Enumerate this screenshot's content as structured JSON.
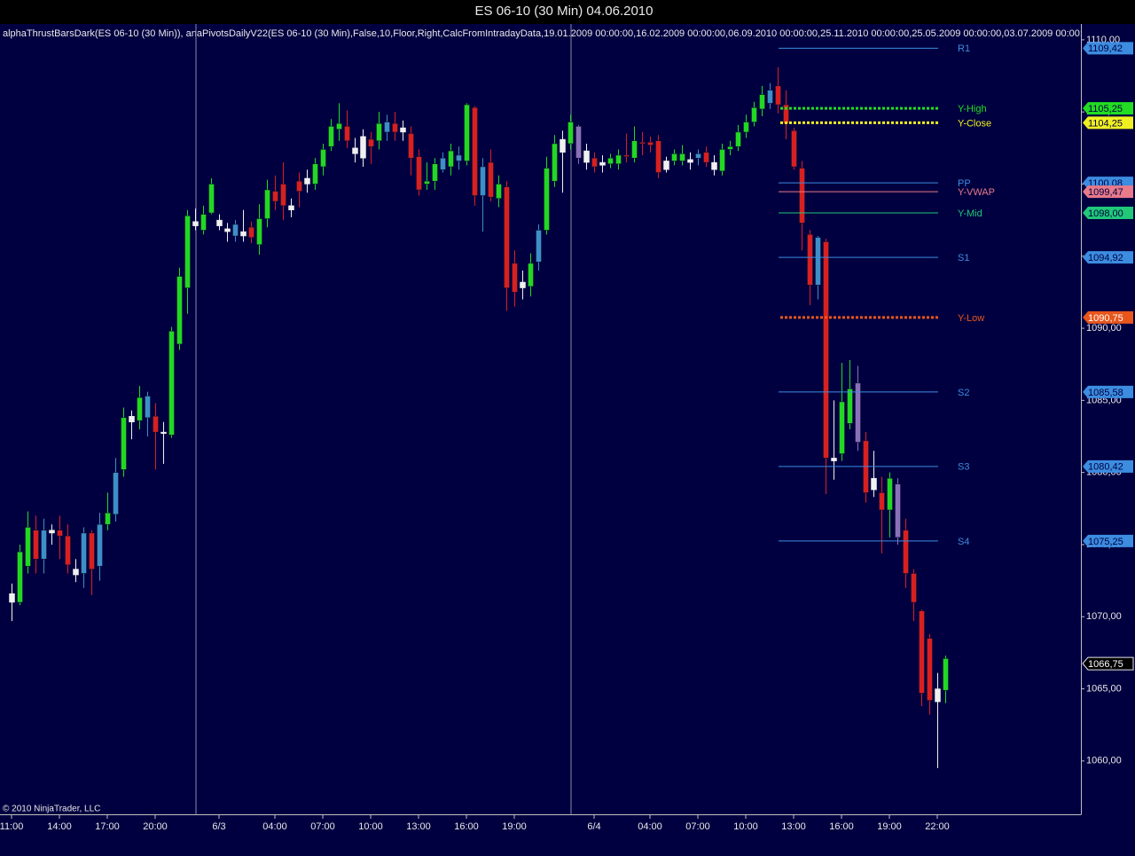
{
  "chart_data": {
    "type": "candlestick",
    "title": "ES 06-10 (30 Min)  04.06.2010",
    "indicator_text": "alphaThrustBarsDark(ES 06-10 (30 Min)), anaPivotsDailyV22(ES 06-10 (30 Min),False,10,Floor,Right,CalcFromIntradayData,19.01.2009 00:00:00,16.02.2009 00:00:00,06.09.2010 00:00:00,25.11.2010 00:00:00,25.05.2009 00:00:00,03.07.2009 00:00:0",
    "copyright": "© 2010 NinjaTrader, LLC",
    "categories": [
      "11:00",
      null,
      null,
      null,
      null,
      null,
      "14:00",
      null,
      null,
      null,
      null,
      null,
      "17:00",
      null,
      null,
      null,
      null,
      null,
      "20:00",
      null,
      null,
      null,
      null,
      null,
      null,
      null,
      "6/3",
      null,
      null,
      null,
      null,
      null,
      null,
      "04:00",
      null,
      null,
      null,
      null,
      null,
      "07:00",
      null,
      null,
      null,
      null,
      null,
      "10:00",
      null,
      null,
      null,
      null,
      null,
      "13:00",
      null,
      null,
      null,
      null,
      null,
      "16:00",
      null,
      null,
      null,
      null,
      null,
      "19:00",
      null,
      null,
      null,
      null,
      null,
      null,
      null,
      null,
      null,
      "6/4",
      null,
      null,
      null,
      null,
      null,
      null,
      "04:00",
      null,
      null,
      null,
      null,
      null,
      "07:00",
      null,
      null,
      null,
      null,
      null,
      "10:00",
      null,
      null,
      null,
      null,
      null,
      "13:00",
      null,
      null,
      null,
      null,
      null,
      "16:00",
      null,
      null,
      null,
      null,
      null,
      "19:00",
      null,
      null,
      null,
      null,
      null,
      "22:00",
      null
    ],
    "open": [
      1071,
      1071,
      1073.5,
      1076,
      1074,
      1076,
      1076,
      1075.6,
      1072.9,
      1073,
      1075.8,
      1073.5,
      1076.4,
      1077.1,
      1080.2,
      1083.9,
      1083.6,
      1083.8,
      1083.9,
      1082.7,
      1082.6,
      1088.9,
      1092.8,
      1097.1,
      1096.8,
      1098,
      1097.1,
      1096.7,
      1096.4,
      1096.7,
      1097,
      1095.8,
      1097.6,
      1099.5,
      1100,
      1098.2,
      1100.2,
      1100,
      1100,
      1101.2,
      1102.6,
      1103.8,
      1104,
      1102.5,
      1101.8,
      1103.1,
      1103,
      1103.6,
      1104.2,
      1103.6,
      1103.5,
      1101.9,
      1100,
      1100.2,
      1101,
      1101.2,
      1101.6,
      1101.6,
      1105.3,
      1099.2,
      1101.5,
      1099,
      1099.8,
      1094.5,
      1093.2,
      1092.9,
      1094.6,
      1096.8,
      1100.2,
      1102.2,
      1102.8,
      1104,
      1102.3,
      1101.8,
      1101.3,
      1101.4,
      1101.4,
      1102,
      1101.8,
      1102.9,
      1102.9,
      1103,
      1101,
      1101.6,
      1101.6,
      1101.7,
      1101.8,
      1102.2,
      1101.5,
      1100.9,
      1102.4,
      1102.6,
      1103.6,
      1104.3,
      1105.2,
      1105.6,
      1106.8,
      1105.5,
      1103.7,
      1101.1,
      1096.5,
      1096.3,
      1096,
      1081,
      1081.3,
      1083.4,
      1086.2,
      1082.2,
      1078.8,
      1078.6,
      1077.4,
      1079.2,
      1076,
      1073,
      1070.4,
      1068.5,
      1064.1,
      1064.9
    ],
    "high": [
      1072.3,
      1075,
      1077.3,
      1077,
      1076.8,
      1076.4,
      1077,
      1076.4,
      1074,
      1076.2,
      1076,
      1077.2,
      1078.6,
      1081,
      1084.5,
      1084.3,
      1086,
      1085.6,
      1084.8,
      1083.5,
      1090.1,
      1094.2,
      1098.2,
      1098.3,
      1098.5,
      1100.4,
      1097.9,
      1097.3,
      1097.5,
      1098.2,
      1097.4,
      1098.6,
      1100.3,
      1100.6,
      1101.5,
      1099,
      1100.8,
      1101,
      1101.8,
      1102.8,
      1104.5,
      1105.6,
      1105.1,
      1103.2,
      1103.8,
      1103.6,
      1105,
      1104.8,
      1105,
      1104.4,
      1104,
      1102.4,
      1101.5,
      1101.8,
      1102.2,
      1102.8,
      1102.6,
      1105.6,
      1105.4,
      1101.8,
      1102.4,
      1100.6,
      1100.2,
      1095.4,
      1094,
      1095.2,
      1097.2,
      1101.9,
      1103.4,
      1103.7,
      1104.8,
      1104.1,
      1102.8,
      1102.2,
      1102,
      1102.1,
      1102.4,
      1103.5,
      1104,
      1103.6,
      1103.3,
      1103.4,
      1101.9,
      1102.4,
      1102.7,
      1102.2,
      1102.4,
      1102.6,
      1102,
      1102.8,
      1103,
      1104.1,
      1104.8,
      1105.7,
      1106.8,
      1107,
      1108.1,
      1106.5,
      1103.9,
      1101.6,
      1096.8,
      1096.4,
      1096.2,
      1085,
      1087.6,
      1087.8,
      1087.4,
      1082.8,
      1081.5,
      1079.7,
      1080,
      1079.6,
      1076.8,
      1073.3,
      1070.5,
      1068.8,
      1066.1,
      1067.3
    ],
    "low": [
      1069.7,
      1070.8,
      1073,
      1073,
      1073,
      1075,
      1074,
      1073,
      1072.4,
      1072,
      1071.5,
      1072.5,
      1076,
      1076.6,
      1079.7,
      1082.3,
      1083,
      1082.5,
      1080.2,
      1080.6,
      1082.4,
      1088.5,
      1091,
      1096.8,
      1096.5,
      1097.9,
      1096.8,
      1096,
      1096,
      1096,
      1095.9,
      1095.1,
      1097,
      1098.2,
      1097.5,
      1097.7,
      1098.4,
      1099.4,
      1099.6,
      1100.6,
      1102.3,
      1103,
      1102.5,
      1101.5,
      1101.2,
      1101.4,
      1102.4,
      1103,
      1103,
      1103,
      1100.6,
      1099.2,
      1099.6,
      1099.6,
      1100.8,
      1100.6,
      1101,
      1101.3,
      1098.5,
      1096.7,
      1098.8,
      1098.4,
      1091.2,
      1091.5,
      1092,
      1092.2,
      1094,
      1096.5,
      1099.8,
      1099.4,
      1102.4,
      1101.4,
      1101,
      1100.8,
      1100.8,
      1101.1,
      1101,
      1101.5,
      1101.5,
      1102,
      1102.2,
      1100.4,
      1100.8,
      1101.3,
      1101.3,
      1101,
      1101.3,
      1101.2,
      1100.6,
      1100.6,
      1102,
      1102.3,
      1103.2,
      1104,
      1104.7,
      1105.2,
      1104.9,
      1103.1,
      1101,
      1095.4,
      1091.6,
      1092,
      1078.5,
      1079.5,
      1080.8,
      1083,
      1081.5,
      1077.9,
      1078.3,
      1074.4,
      1075.5,
      1075,
      1072,
      1069.7,
      1063.8,
      1063.2,
      1059.5,
      1064
    ],
    "close": [
      1071.6,
      1074.5,
      1076.2,
      1074,
      1076,
      1075.8,
      1075.6,
      1073.6,
      1073.3,
      1075.8,
      1073.3,
      1076.4,
      1077.2,
      1080,
      1083.8,
      1083.5,
      1085.2,
      1085.3,
      1082.8,
      1082.8,
      1089.8,
      1093.6,
      1097.8,
      1097.4,
      1097.9,
      1100,
      1097.5,
      1096.9,
      1097.2,
      1096.4,
      1096.3,
      1097.6,
      1099.6,
      1098.8,
      1098.5,
      1098.5,
      1099.5,
      1100.4,
      1101.4,
      1102.4,
      1104,
      1104.2,
      1103,
      1102.1,
      1103.3,
      1102.6,
      1104.2,
      1104.3,
      1103.6,
      1103.9,
      1101.8,
      1099.6,
      1100.2,
      1101.4,
      1101.8,
      1102.3,
      1102,
      1105.5,
      1099.2,
      1101.2,
      1099.1,
      1100,
      1092.8,
      1092.5,
      1092.8,
      1094.5,
      1096.8,
      1101.1,
      1102.8,
      1103.1,
      1104.3,
      1101.8,
      1101.5,
      1101.2,
      1101.5,
      1101.8,
      1102,
      1101.9,
      1103,
      1102.8,
      1102.7,
      1100.8,
      1101.6,
      1102.1,
      1102.1,
      1101.5,
      1102.1,
      1101.5,
      1101,
      1102.4,
      1102.6,
      1103.6,
      1104.3,
      1105.3,
      1106.2,
      1106.5,
      1105.5,
      1104.2,
      1101.2,
      1097.3,
      1093,
      1093,
      1081,
      1080.8,
      1084.9,
      1085.8,
      1082.1,
      1078.6,
      1079.6,
      1077.4,
      1079.6,
      1075.5,
      1073,
      1071,
      1064.7,
      1064.2,
      1065,
      1067.1
    ],
    "colors": [
      "#f0f0f0",
      "#22d822",
      "#22d822",
      "#d82020",
      "#3d8fc8",
      "#f0f0f0",
      "#d82020",
      "#d82020",
      "#f0f0f0",
      "#3d8fc8",
      "#d82020",
      "#3d8fc8",
      "#22d822",
      "#3d8fc8",
      "#22d822",
      "#f0f0f0",
      "#22d822",
      "#3d8fc8",
      "#d82020",
      "#f0f0f0",
      "#22d822",
      "#22d822",
      "#22d822",
      "#f0f0f0",
      "#22d822",
      "#22d822",
      "#f0f0f0",
      "#f0f0f0",
      "#3d8fc8",
      "#f0f0f0",
      "#d82020",
      "#22d822",
      "#22d822",
      "#d82020",
      "#d82020",
      "#f0f0f0",
      "#d82020",
      "#f0f0f0",
      "#22d822",
      "#22d822",
      "#22d822",
      "#22d822",
      "#d82020",
      "#f0f0f0",
      "#f0f0f0",
      "#d82020",
      "#22d822",
      "#3d8fc8",
      "#d82020",
      "#f0f0f0",
      "#d82020",
      "#d82020",
      "#22d822",
      "#22d822",
      "#3d8fc8",
      "#22d822",
      "#3d8fc8",
      "#22d822",
      "#d82020",
      "#3d8fc8",
      "#d82020",
      "#22d822",
      "#d82020",
      "#d82020",
      "#f0f0f0",
      "#22d822",
      "#3d8fc8",
      "#22d822",
      "#22d822",
      "#f0f0f0",
      "#22d822",
      "#8a70b8",
      "#f0f0f0",
      "#d82020",
      "#f0f0f0",
      "#22d822",
      "#22d822",
      "#d82020",
      "#22d822",
      "#d82020",
      "#d82020",
      "#d82020",
      "#f0f0f0",
      "#22d822",
      "#22d822",
      "#f0f0f0",
      "#3d8fc8",
      "#d82020",
      "#f0f0f0",
      "#22d822",
      "#22d822",
      "#22d822",
      "#22d822",
      "#22d822",
      "#22d822",
      "#3d8fc8",
      "#d82020",
      "#d82020",
      "#d82020",
      "#d82020",
      "#d82020",
      "#3d8fc8",
      "#d82020",
      "#f0f0f0",
      "#22d822",
      "#22d822",
      "#8a70b8",
      "#d82020",
      "#f0f0f0",
      "#d82020",
      "#22d822",
      "#8a70b8",
      "#d82020",
      "#d82020",
      "#d82020",
      "#d82020",
      "#f0f0f0",
      "#22d822"
    ],
    "ylim": [
      1056.3,
      1111.1
    ],
    "yticks": [
      {
        "value": 1060,
        "label": "1060,00"
      },
      {
        "value": 1065,
        "label": "1065,00"
      },
      {
        "value": 1070,
        "label": "1070,00"
      },
      {
        "value": 1075,
        "label": "1075,00"
      },
      {
        "value": 1080,
        "label": "1080,00"
      },
      {
        "value": 1085,
        "label": "1085,00"
      },
      {
        "value": 1090,
        "label": "1090,00"
      },
      {
        "value": 1095,
        "label": "1095,00"
      },
      {
        "value": 1100,
        "label": "1100,00"
      },
      {
        "value": 1105,
        "label": "1105,00"
      },
      {
        "value": 1110,
        "label": "1110,00"
      }
    ],
    "pivots": [
      {
        "name": "R1",
        "value": 1109.42,
        "value_label": "1109,42",
        "color": "#3c8ce0",
        "dotted": false
      },
      {
        "name": "Y-High",
        "value": 1105.25,
        "value_label": "1105,25",
        "color": "#22dd22",
        "dotted": true
      },
      {
        "name": "Y-Close",
        "value": 1104.25,
        "value_label": "1104,25",
        "color": "#f0f020",
        "dotted": true
      },
      {
        "name": "PP",
        "value": 1100.08,
        "value_label": "1100,08",
        "color": "#3c8ce0",
        "dotted": false
      },
      {
        "name": "Y-VWAP",
        "value": 1099.47,
        "value_label": "1099,47",
        "color": "#e87a8a",
        "dotted": false
      },
      {
        "name": "Y-Mid",
        "value": 1098.0,
        "value_label": "1098,00",
        "color": "#20c878",
        "dotted": false
      },
      {
        "name": "S1",
        "value": 1094.92,
        "value_label": "1094,92",
        "color": "#3c8ce0",
        "dotted": false
      },
      {
        "name": "Y-Low",
        "value": 1090.75,
        "value_label": "1090,75",
        "color": "#e8561c",
        "dotted": true
      },
      {
        "name": "S2",
        "value": 1085.58,
        "value_label": "1085,58",
        "color": "#3c8ce0",
        "dotted": false
      },
      {
        "name": "S3",
        "value": 1080.42,
        "value_label": "1080,42",
        "color": "#3c8ce0",
        "dotted": false
      },
      {
        "name": "S4",
        "value": 1075.25,
        "value_label": "1075,25",
        "color": "#3c8ce0",
        "dotted": false
      }
    ],
    "last_price": {
      "value": 1066.75,
      "label": "1066,75"
    }
  }
}
